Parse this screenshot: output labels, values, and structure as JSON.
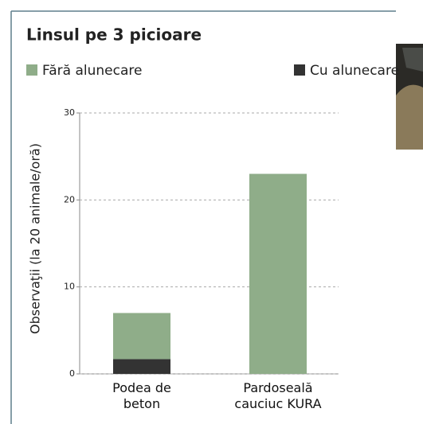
{
  "chart_data": {
    "type": "stacked-bar",
    "title": "Linsul pe 3 picioare",
    "y_label": "Observaţii (la 20 animale/oră)",
    "categories": [
      "Podea de beton",
      "Pardoseală cauciuc KURA"
    ],
    "series": [
      {
        "name": "Fără alunecare",
        "color": "#8fad89",
        "values": [
          5.3,
          23
        ]
      },
      {
        "name": "Cu alunecare",
        "color": "#333333",
        "values": [
          1.7,
          0
        ]
      }
    ],
    "ylim": [
      0,
      30
    ],
    "yticks": [
      0,
      10,
      20,
      30
    ],
    "grid": true
  }
}
